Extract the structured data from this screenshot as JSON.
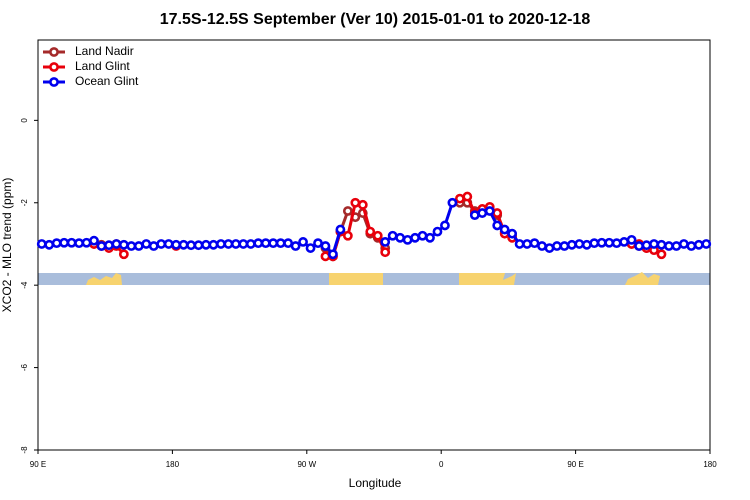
{
  "chart_data": {
    "type": "line",
    "title": "17.5S-12.5S September (Ver 10)   2015-01-01 to 2020-12-18",
    "x_label": "Longitude",
    "y_label": "XCO2 - MLO trend (ppm)",
    "xlim": [
      90,
      540
    ],
    "ylim": [
      -8,
      1.95
    ],
    "xticks": [
      {
        "value": 90,
        "label": "90 E"
      },
      180,
      {
        "value": 270,
        "label": "90 W"
      },
      {
        "value": 360,
        "label": "0"
      },
      {
        "value": 450,
        "label": "90 E"
      },
      {
        "value": 540,
        "label": "180"
      }
    ],
    "yticks": [
      0,
      -2,
      -4,
      -6,
      -8
    ],
    "legend": "top-left",
    "x": [
      92.5,
      97.5,
      102.5,
      107.5,
      112.5,
      117.5,
      122.5,
      127.5,
      132.5,
      137.5,
      142.5,
      147.5,
      152.5,
      157.5,
      162.5,
      167.5,
      172.5,
      177.5,
      182.5,
      187.5,
      192.5,
      197.5,
      202.5,
      207.5,
      212.5,
      217.5,
      222.5,
      227.5,
      232.5,
      237.5,
      242.5,
      247.5,
      252.5,
      257.5,
      262.5,
      267.5,
      272.5,
      277.5,
      282.5,
      287.5,
      292.5,
      297.5,
      302.5,
      307.5,
      312.5,
      317.5,
      322.5,
      327.5,
      332.5,
      337.5,
      342.5,
      347.5,
      352.5,
      357.5,
      362.5,
      367.5,
      372.5,
      377.5,
      382.5,
      387.5,
      392.5,
      397.5,
      402.5,
      407.5,
      412.5,
      417.5,
      422.5,
      427.5,
      432.5,
      437.5,
      442.5,
      447.5,
      452.5,
      457.5,
      462.5,
      467.5,
      472.5,
      477.5,
      482.5,
      487.5,
      492.5,
      497.5,
      502.5,
      507.5,
      512.5,
      517.5,
      522.5,
      527.5,
      532.5,
      537.5
    ],
    "series": [
      {
        "name": "Land Nadir",
        "color": "#a52a2a",
        "values": [
          null,
          null,
          null,
          null,
          null,
          null,
          null,
          -3.0,
          -3.02,
          -3.05,
          -3.0,
          null,
          null,
          null,
          null,
          null,
          null,
          null,
          null,
          null,
          null,
          null,
          null,
          null,
          null,
          null,
          null,
          null,
          null,
          null,
          null,
          null,
          null,
          null,
          null,
          null,
          null,
          null,
          -3.1,
          -3.3,
          -2.7,
          -2.2,
          -2.35,
          -2.25,
          -2.75,
          -2.85,
          -3.1,
          null,
          null,
          null,
          null,
          null,
          null,
          null,
          null,
          null,
          -2.0,
          -2.0,
          -2.2,
          -2.2,
          -2.15,
          -2.3,
          -2.7,
          -2.8,
          null,
          null,
          null,
          null,
          null,
          null,
          null,
          null,
          null,
          null,
          null,
          null,
          null,
          null,
          null,
          -3.0,
          -3.05,
          -3.1,
          -3.05,
          null,
          null,
          null,
          null,
          null,
          null,
          null
        ]
      },
      {
        "name": "Land Glint",
        "color": "#e8000b",
        "values": [
          null,
          null,
          null,
          null,
          null,
          null,
          null,
          -3.0,
          -3.05,
          -3.1,
          -3.05,
          -3.25,
          null,
          null,
          null,
          null,
          null,
          null,
          -3.05,
          null,
          null,
          null,
          null,
          null,
          null,
          null,
          null,
          null,
          null,
          null,
          null,
          null,
          null,
          null,
          null,
          null,
          null,
          null,
          -3.3,
          -3.3,
          -2.7,
          -2.8,
          -2.0,
          -2.05,
          -2.7,
          -2.8,
          -3.2,
          null,
          null,
          null,
          null,
          null,
          null,
          null,
          null,
          null,
          -1.9,
          -1.85,
          -2.25,
          -2.15,
          -2.1,
          -2.25,
          -2.75,
          -2.85,
          null,
          null,
          null,
          null,
          null,
          null,
          null,
          null,
          null,
          null,
          null,
          null,
          null,
          null,
          null,
          -3.0,
          -3.0,
          -3.1,
          -3.15,
          -3.25,
          null,
          null,
          null,
          null,
          null,
          null
        ]
      },
      {
        "name": "Ocean Glint",
        "color": "#0000ee",
        "values": [
          -3.0,
          -3.02,
          -2.98,
          -2.97,
          -2.97,
          -2.98,
          -2.97,
          -2.92,
          -3.05,
          -3.03,
          -3.0,
          -3.02,
          -3.05,
          -3.05,
          -3.0,
          -3.05,
          -3.0,
          -3.0,
          -3.02,
          -3.02,
          -3.03,
          -3.03,
          -3.02,
          -3.02,
          -3.0,
          -3.0,
          -3.0,
          -3.0,
          -3.0,
          -2.98,
          -2.98,
          -2.98,
          -2.98,
          -2.98,
          -3.05,
          -2.95,
          -3.1,
          -2.98,
          -3.05,
          -3.25,
          -2.65,
          null,
          null,
          null,
          null,
          null,
          -2.95,
          -2.8,
          -2.85,
          -2.9,
          -2.85,
          -2.8,
          -2.85,
          -2.7,
          -2.55,
          -2.0,
          null,
          null,
          -2.3,
          -2.25,
          -2.2,
          -2.55,
          -2.65,
          -2.75,
          -3.0,
          -3.0,
          -2.98,
          -3.05,
          -3.1,
          -3.05,
          -3.05,
          -3.02,
          -3.0,
          -3.02,
          -2.98,
          -2.97,
          -2.97,
          -2.98,
          -2.95,
          -2.9,
          -3.05,
          -3.03,
          -3.0,
          -3.02,
          -3.05,
          -3.05,
          -3.0,
          -3.05,
          -3.02,
          -3.0
        ]
      }
    ]
  }
}
